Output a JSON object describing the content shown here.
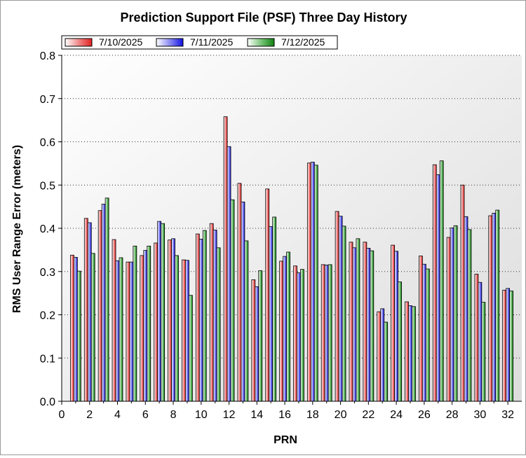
{
  "chart_data": {
    "type": "bar",
    "title": "Prediction Support File (PSF) Three Day History",
    "xlabel": "PRN",
    "ylabel": "RMS User Range Error (meters)",
    "ylim": [
      0,
      0.8
    ],
    "xlim": [
      0,
      33
    ],
    "y_ticks": [
      "0.0",
      "0.1",
      "0.2",
      "0.3",
      "0.4",
      "0.5",
      "0.6",
      "0.7",
      "0.8"
    ],
    "x_ticks": [
      "0",
      "2",
      "4",
      "6",
      "8",
      "10",
      "12",
      "14",
      "16",
      "18",
      "20",
      "22",
      "24",
      "26",
      "28",
      "30",
      "32"
    ],
    "grid": true,
    "legend_position": "top-left",
    "categories": [
      1,
      2,
      3,
      4,
      5,
      6,
      7,
      8,
      9,
      10,
      11,
      12,
      13,
      14,
      15,
      16,
      17,
      18,
      19,
      20,
      21,
      22,
      23,
      24,
      25,
      26,
      27,
      28,
      29,
      30,
      31,
      32
    ],
    "series": [
      {
        "name": "7/10/2025",
        "color": "#e03030",
        "values": [
          0.338,
          0.423,
          0.441,
          0.374,
          0.322,
          0.337,
          0.366,
          0.373,
          0.327,
          0.387,
          0.411,
          0.658,
          0.504,
          0.281,
          0.491,
          0.324,
          0.313,
          0.551,
          0.316,
          0.439,
          0.368,
          0.368,
          0.207,
          0.361,
          0.23,
          0.336,
          0.547,
          0.379,
          0.5,
          0.294,
          0.429,
          0.257
        ]
      },
      {
        "name": "7/11/2025",
        "color": "#2020e0",
        "values": [
          0.333,
          0.413,
          0.456,
          0.325,
          0.322,
          0.349,
          0.416,
          0.376,
          0.326,
          0.375,
          0.396,
          0.589,
          0.461,
          0.265,
          0.404,
          0.335,
          0.297,
          0.553,
          0.315,
          0.428,
          0.355,
          0.354,
          0.214,
          0.347,
          0.221,
          0.317,
          0.524,
          0.401,
          0.427,
          0.275,
          0.435,
          0.261
        ]
      },
      {
        "name": "7/12/2025",
        "color": "#20a020",
        "values": [
          0.301,
          0.342,
          0.47,
          0.332,
          0.359,
          0.359,
          0.411,
          0.337,
          0.245,
          0.395,
          0.355,
          0.466,
          0.371,
          0.302,
          0.426,
          0.345,
          0.305,
          0.546,
          0.316,
          0.405,
          0.376,
          0.348,
          0.183,
          0.276,
          0.219,
          0.306,
          0.556,
          0.406,
          0.397,
          0.229,
          0.442,
          0.255
        ]
      }
    ]
  }
}
